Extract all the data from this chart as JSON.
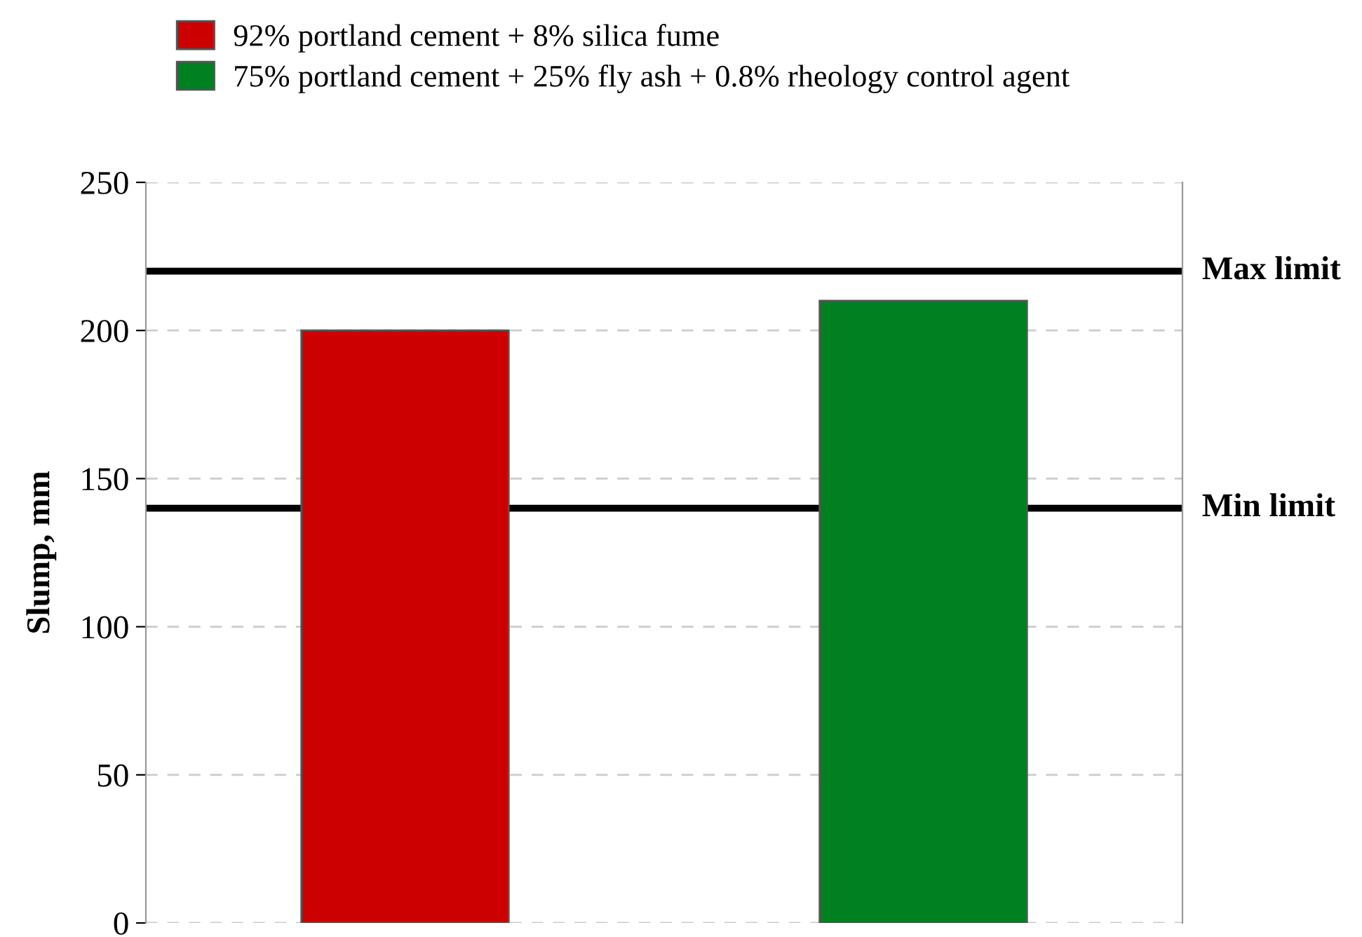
{
  "chart_data": {
    "type": "bar",
    "ylabel": "Slump, mm",
    "categories": [
      null,
      null
    ],
    "series": [
      {
        "name": "92% portland cement + 8% silica fume",
        "color": "#cc0000",
        "values": [
          200,
          null
        ]
      },
      {
        "name": "75% portland cement + 25% fly ash + 0.8% rheology control agent",
        "color": "#008020",
        "values": [
          null,
          210
        ]
      }
    ],
    "ylim": [
      0,
      250
    ],
    "yticks": [
      0,
      50,
      100,
      150,
      200,
      250
    ],
    "grid": "y",
    "legend": "top left",
    "ref_lines": [
      {
        "axis": "y",
        "value": 220,
        "label": "Max limit",
        "color": "#000000"
      },
      {
        "axis": "y",
        "value": 140,
        "label": "Min limit",
        "color": "#000000"
      }
    ]
  }
}
